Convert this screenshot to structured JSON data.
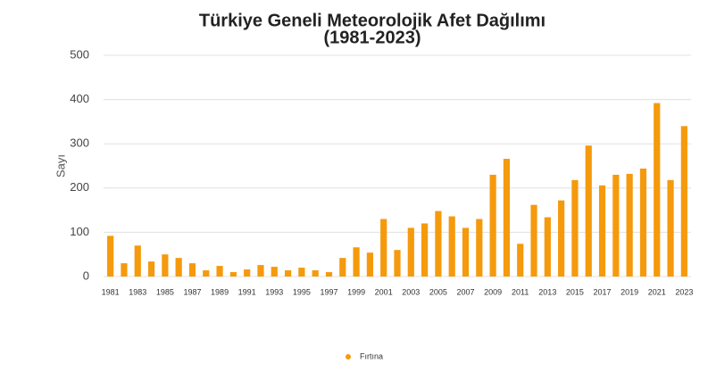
{
  "chart_data": {
    "type": "bar",
    "title": "Türkiye Geneli Meteorolojik Afet Dağılımı",
    "subtitle": "(1981-2023)",
    "y_label": "Sayı",
    "categories": [
      "1981",
      null,
      "1983",
      null,
      "1985",
      null,
      "1987",
      null,
      "1989",
      null,
      "1991",
      null,
      "1993",
      null,
      "1995",
      null,
      "1997",
      null,
      "1999",
      null,
      "2001",
      null,
      "2003",
      null,
      "2005",
      null,
      "2007",
      null,
      "2009",
      null,
      "2011",
      null,
      "2013",
      null,
      "2015",
      null,
      "2017",
      null,
      "2019",
      null,
      "2021",
      null,
      "2023"
    ],
    "series": [
      {
        "name": "Fırtına",
        "color": "#f59a0c",
        "values": [
          92,
          30,
          70,
          34,
          50,
          42,
          30,
          14,
          24,
          10,
          16,
          26,
          22,
          14,
          20,
          14,
          10,
          42,
          66,
          54,
          130,
          60,
          110,
          120,
          148,
          136,
          110,
          130,
          230,
          266,
          74,
          162,
          134,
          172,
          218,
          296,
          206,
          230,
          232,
          244,
          392,
          218,
          340
        ]
      }
    ],
    "ylim": [
      0,
      500
    ],
    "yticks": [
      0,
      100,
      200,
      300,
      400,
      500
    ],
    "grid": true,
    "legend": "bottom"
  }
}
